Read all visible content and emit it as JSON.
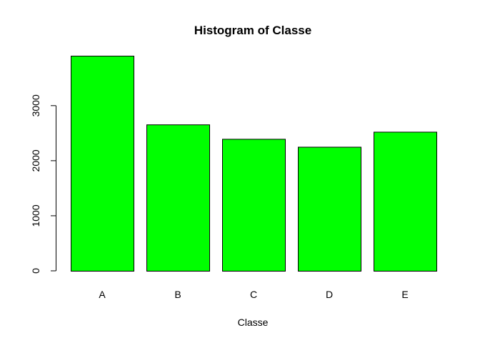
{
  "chart_data": {
    "type": "bar",
    "title": "Histogram of Classe",
    "xlabel": "Classe",
    "ylabel": "",
    "categories": [
      "A",
      "B",
      "C",
      "D",
      "E"
    ],
    "values": [
      3906,
      2658,
      2396,
      2252,
      2525
    ],
    "ylim": [
      0,
      3906
    ],
    "yticks": [
      0,
      1000,
      2000,
      3000
    ],
    "grid": false,
    "bar_color": "#00ff00",
    "bar_border_color": "#000000"
  }
}
